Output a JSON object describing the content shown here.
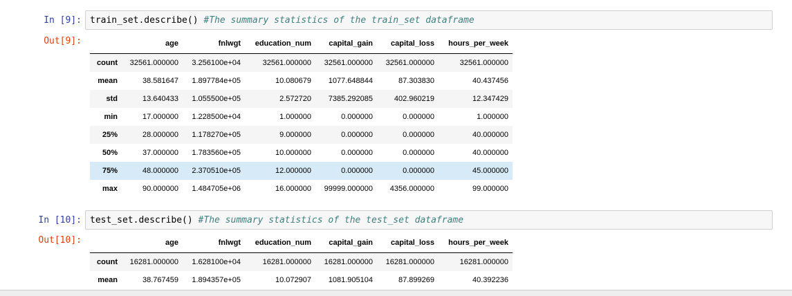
{
  "cells": [
    {
      "in_prompt": "In [9]:",
      "code": "train_set.describe() ",
      "comment": "#The summary statistics of the train_set dataframe",
      "out_prompt": "Out[9]:",
      "columns": [
        "",
        "age",
        "fnlwgt",
        "education_num",
        "capital_gain",
        "capital_loss",
        "hours_per_week"
      ],
      "rows": [
        [
          "count",
          "32561.000000",
          "3.256100e+04",
          "32561.000000",
          "32561.000000",
          "32561.000000",
          "32561.000000"
        ],
        [
          "mean",
          "38.581647",
          "1.897784e+05",
          "10.080679",
          "1077.648844",
          "87.303830",
          "40.437456"
        ],
        [
          "std",
          "13.640433",
          "1.055500e+05",
          "2.572720",
          "7385.292085",
          "402.960219",
          "12.347429"
        ],
        [
          "min",
          "17.000000",
          "1.228500e+04",
          "1.000000",
          "0.000000",
          "0.000000",
          "1.000000"
        ],
        [
          "25%",
          "28.000000",
          "1.178270e+05",
          "9.000000",
          "0.000000",
          "0.000000",
          "40.000000"
        ],
        [
          "50%",
          "37.000000",
          "1.783560e+05",
          "10.000000",
          "0.000000",
          "0.000000",
          "40.000000"
        ],
        [
          "75%",
          "48.000000",
          "2.370510e+05",
          "12.000000",
          "0.000000",
          "0.000000",
          "45.000000"
        ],
        [
          "max",
          "90.000000",
          "1.484705e+06",
          "16.000000",
          "99999.000000",
          "4356.000000",
          "99.000000"
        ]
      ],
      "highlighted_row": "75%"
    },
    {
      "in_prompt": "In [10]:",
      "code": "test_set.describe() ",
      "comment": "#The summary statistics of the test_set dataframe",
      "out_prompt": "Out[10]:",
      "columns": [
        "",
        "age",
        "fnlwgt",
        "education_num",
        "capital_gain",
        "capital_loss",
        "hours_per_week"
      ],
      "rows": [
        [
          "count",
          "16281.000000",
          "1.628100e+04",
          "16281.000000",
          "16281.000000",
          "16281.000000",
          "16281.000000"
        ],
        [
          "mean",
          "38.767459",
          "1.894357e+05",
          "10.072907",
          "1081.905104",
          "87.899269",
          "40.392236"
        ]
      ]
    }
  ],
  "colors": {
    "prompt_in": "#303f9f",
    "prompt_out": "#d84315",
    "comment": "#408080",
    "row_highlight": "#d6eaf8"
  }
}
